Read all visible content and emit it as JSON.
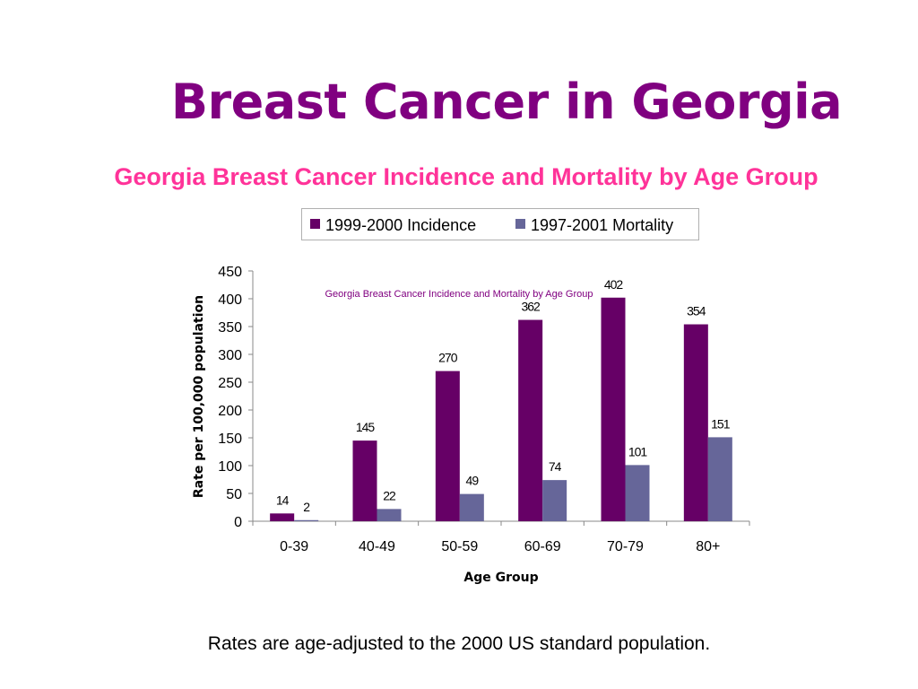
{
  "slide": {
    "title": "Breast Cancer in Georgia",
    "subtitle": "Georgia Breast Cancer Incidence and Mortality by Age Group",
    "footnote": "Rates are age-adjusted to the 2000 US standard population."
  },
  "colors": {
    "title": "#800080",
    "subtitle": "#ff3399",
    "incidence": "#660066",
    "mortality": "#666699",
    "inner_title": "#800080"
  },
  "chart_data": {
    "type": "bar",
    "title": "Georgia Breast Cancer Incidence and Mortality by Age Group",
    "xlabel": "Age Group",
    "ylabel": "Rate per 100,000 population",
    "categories": [
      "0-39",
      "40-49",
      "50-59",
      "60-69",
      "70-79",
      "80+"
    ],
    "series": [
      {
        "name": "1999-2000 Incidence",
        "values": [
          14,
          145,
          270,
          362,
          402,
          354
        ],
        "labels": [
          "14",
          "145",
          "270",
          "362",
          "402",
          "354"
        ]
      },
      {
        "name": "1997-2001 Mortality",
        "values": [
          2,
          22,
          49,
          74,
          101,
          151
        ],
        "labels": [
          "2",
          "22",
          "49",
          "74",
          "101",
          "151"
        ]
      }
    ],
    "ylim": [
      0,
      450
    ],
    "yticks": [
      0,
      50,
      100,
      150,
      200,
      250,
      300,
      350,
      400,
      450
    ],
    "ytick_labels": [
      "0",
      "50",
      "100",
      "150",
      "200",
      "250",
      "300",
      "350",
      "400",
      "450"
    ],
    "grid": false,
    "legend_position": "top"
  }
}
